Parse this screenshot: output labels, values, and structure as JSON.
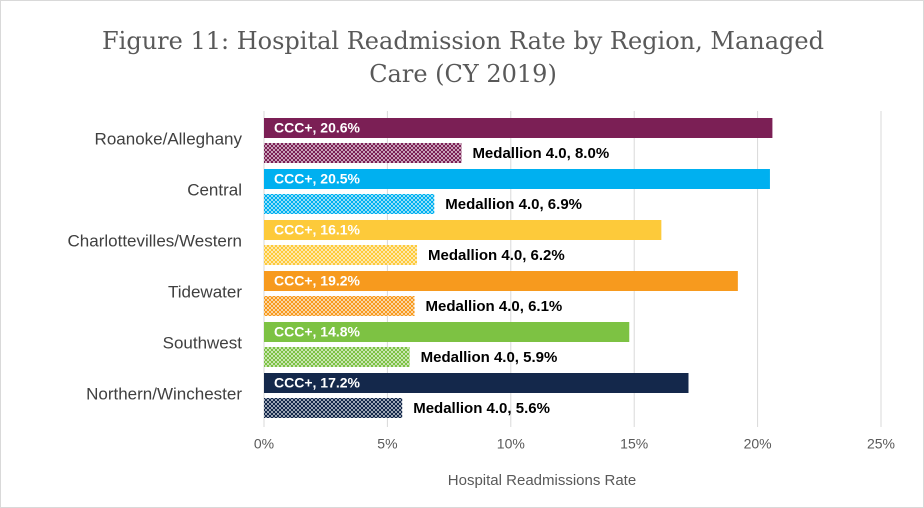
{
  "chart_data": {
    "type": "hbar",
    "title": "Figure 11: Hospital Readmission Rate by Region, Managed Care (CY 2019)",
    "x_label": "Hospital Readmissions Rate",
    "categories": [
      "Roanoke/Alleghany",
      "Central",
      "Charlottevilles/Western",
      "Tidewater",
      "Southwest",
      "Northern/Winchester"
    ],
    "colors": [
      "#7b1f55",
      "#00b0f0",
      "#fdca3a",
      "#f79a1e",
      "#7dc243",
      "#14284b"
    ],
    "series": [
      {
        "pattern": "solid",
        "values": [
          20.6,
          20.5,
          16.1,
          19.2,
          14.8,
          17.2
        ],
        "value_labels": [
          "CCC+, 20.6%",
          "CCC+, 20.5%",
          "CCC+, 16.1%",
          "CCC+, 19.2%",
          "CCC+, 14.8%",
          "CCC+, 17.2%"
        ]
      },
      {
        "pattern": "dotted",
        "values": [
          8.0,
          6.9,
          6.2,
          6.1,
          5.9,
          5.6
        ],
        "value_labels": [
          "Medallion 4.0, 8.0%",
          "Medallion 4.0, 6.9%",
          "Medallion 4.0, 6.2%",
          "Medallion 4.0, 6.1%",
          "Medallion 4.0, 5.9%",
          "Medallion 4.0, 5.6%"
        ]
      }
    ],
    "xlim": [
      0,
      25
    ],
    "xticks": [
      {
        "value": 0,
        "label": "0%"
      },
      {
        "value": 5,
        "label": "5%"
      },
      {
        "value": 10,
        "label": "10%"
      },
      {
        "value": 15,
        "label": "15%"
      },
      {
        "value": 20,
        "label": "20%"
      },
      {
        "value": 25,
        "label": "25%"
      }
    ],
    "grid": true
  }
}
